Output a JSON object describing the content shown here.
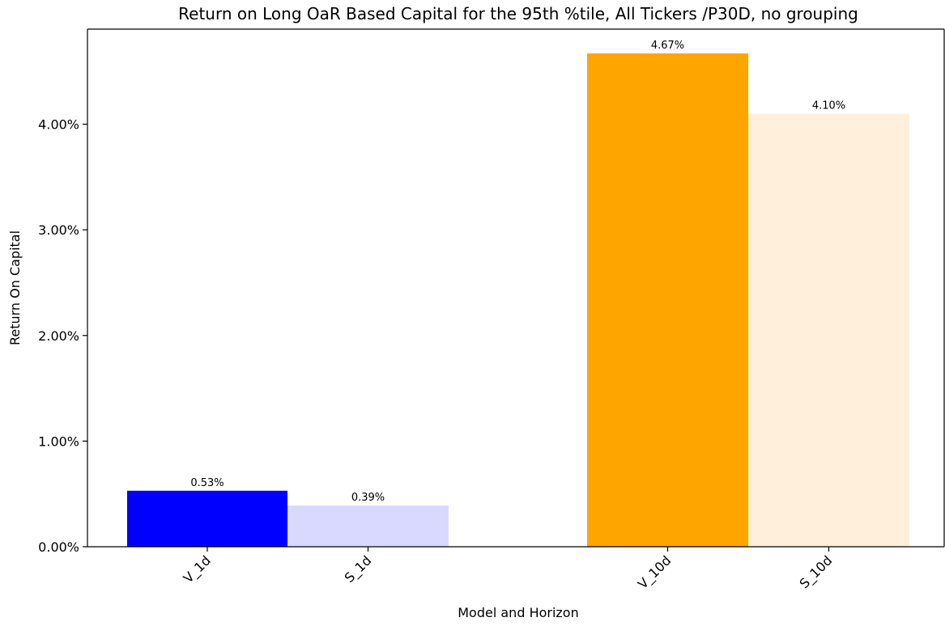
{
  "chart_data": {
    "type": "bar",
    "title": "Return on Long OaR Based Capital for the 95th %tile, All Tickers /P30D, no grouping",
    "xlabel": "Model and Horizon",
    "ylabel": "Return On Capital",
    "ylim": [
      0,
      4.9
    ],
    "yticks": [
      0,
      1,
      2,
      3,
      4
    ],
    "ytick_labels": [
      "0.00%",
      "1.00%",
      "2.00%",
      "3.00%",
      "4.00%"
    ],
    "categories": [
      "V_1d",
      "S_1d",
      "V_10d",
      "S_10d"
    ],
    "values": [
      0.53,
      0.39,
      4.67,
      4.1
    ],
    "value_labels": [
      "0.53%",
      "0.39%",
      "4.67%",
      "4.10%"
    ],
    "colors": [
      "#0000ff",
      "#d9d9ff",
      "#ffa500",
      "#ffefdb"
    ],
    "grid": false,
    "legend": "none"
  }
}
